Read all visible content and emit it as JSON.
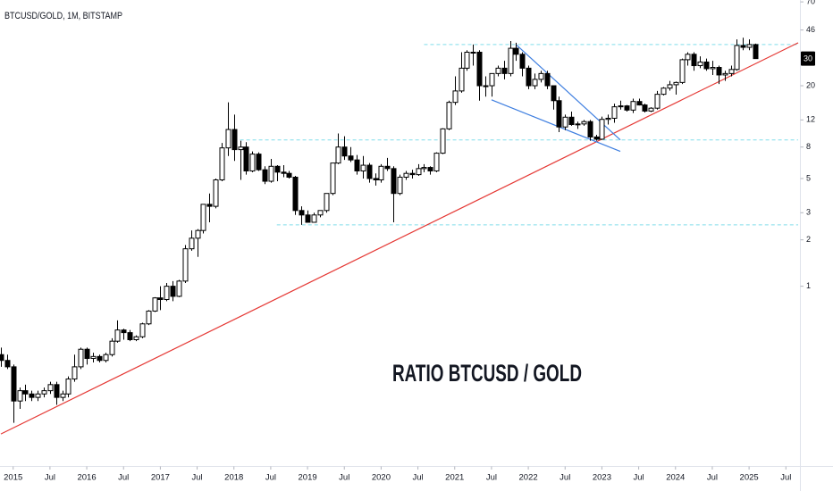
{
  "chart_data": {
    "type": "candlestick",
    "title": "BTCUSD/GOLD, 1M, BITSTAMP",
    "annotation": "RATIO BTCUSD / GOLD",
    "log_scale": true,
    "grid": false,
    "up_color": "#ffffff",
    "down_color": "#000000",
    "wick_color": "#000000",
    "x": [
      "2014-11",
      "2014-12",
      "2015-01",
      "2015-02",
      "2015-03",
      "2015-04",
      "2015-05",
      "2015-06",
      "2015-07",
      "2015-08",
      "2015-09",
      "2015-10",
      "2015-11",
      "2015-12",
      "2016-01",
      "2016-02",
      "2016-03",
      "2016-04",
      "2016-05",
      "2016-06",
      "2016-07",
      "2016-08",
      "2016-09",
      "2016-10",
      "2016-11",
      "2016-12",
      "2017-01",
      "2017-02",
      "2017-03",
      "2017-04",
      "2017-05",
      "2017-06",
      "2017-07",
      "2017-08",
      "2017-09",
      "2017-10",
      "2017-11",
      "2017-12",
      "2018-01",
      "2018-02",
      "2018-03",
      "2018-04",
      "2018-05",
      "2018-06",
      "2018-07",
      "2018-08",
      "2018-09",
      "2018-10",
      "2018-11",
      "2018-12",
      "2019-01",
      "2019-02",
      "2019-03",
      "2019-04",
      "2019-05",
      "2019-06",
      "2019-07",
      "2019-08",
      "2019-09",
      "2019-10",
      "2019-11",
      "2019-12",
      "2020-01",
      "2020-02",
      "2020-03",
      "2020-04",
      "2020-05",
      "2020-06",
      "2020-07",
      "2020-08",
      "2020-09",
      "2020-10",
      "2020-11",
      "2020-12",
      "2021-01",
      "2021-02",
      "2021-03",
      "2021-04",
      "2021-05",
      "2021-06",
      "2021-07",
      "2021-08",
      "2021-09",
      "2021-10",
      "2021-11",
      "2021-12",
      "2022-01",
      "2022-02",
      "2022-03",
      "2022-04",
      "2022-05",
      "2022-06",
      "2022-07",
      "2022-08",
      "2022-09",
      "2022-10",
      "2022-11",
      "2022-12",
      "2023-01",
      "2023-02",
      "2023-03",
      "2023-04",
      "2023-05",
      "2023-06",
      "2023-07",
      "2023-08",
      "2023-09",
      "2023-10",
      "2023-11",
      "2023-12",
      "2024-01",
      "2024-02",
      "2024-03",
      "2024-04",
      "2024-05",
      "2024-06",
      "2024-07",
      "2024-08",
      "2024-09",
      "2024-10",
      "2024-11",
      "2024-12",
      "2025-01",
      "2025-02"
    ],
    "open": [
      0.36,
      0.33,
      0.3,
      0.18,
      0.21,
      0.2,
      0.19,
      0.2,
      0.21,
      0.23,
      0.19,
      0.2,
      0.25,
      0.3,
      0.39,
      0.34,
      0.35,
      0.33,
      0.36,
      0.44,
      0.52,
      0.5,
      0.45,
      0.47,
      0.57,
      0.69,
      0.84,
      0.82,
      1.0,
      0.86,
      1.08,
      1.75,
      2.05,
      2.3,
      3.4,
      3.3,
      4.9,
      7.9,
      10.4,
      7.7,
      8.0,
      5.6,
      7.2,
      5.7,
      4.8,
      6.0,
      5.5,
      5.4,
      5.1,
      3.1,
      2.9,
      2.6,
      2.9,
      3.1,
      4.0,
      6.3,
      8.0,
      7.0,
      6.6,
      5.6,
      6.1,
      5.0,
      4.9,
      6.0,
      5.8,
      4.0,
      5.1,
      5.4,
      5.3,
      5.8,
      5.9,
      5.6,
      7.3,
      10.5,
      15.6,
      18.5,
      26,
      33,
      33,
      20,
      20,
      24,
      26,
      24,
      35,
      32,
      26,
      20,
      22,
      24,
      20,
      16,
      10.8,
      12.5,
      11.2,
      11.3,
      11.7,
      9.3,
      9.0,
      12.1,
      12.3,
      14.6,
      14.8,
      13.9,
      15.8,
      15.0,
      13.7,
      14.3,
      17.6,
      19.3,
      20.3,
      21,
      29.5,
      32,
      27,
      28.5,
      25.8,
      26.3,
      23.5,
      24,
      25.5,
      36.5,
      35.5,
      37
    ],
    "high": [
      0.4,
      0.36,
      0.31,
      0.22,
      0.23,
      0.21,
      0.21,
      0.22,
      0.24,
      0.24,
      0.21,
      0.26,
      0.36,
      0.4,
      0.4,
      0.37,
      0.36,
      0.37,
      0.46,
      0.6,
      0.53,
      0.52,
      0.48,
      0.58,
      0.7,
      0.85,
      1.0,
      1.05,
      1.08,
      1.1,
      1.85,
      2.3,
      2.35,
      3.4,
      4.0,
      5.0,
      8.5,
      15.6,
      13.0,
      8.8,
      8.6,
      7.5,
      7.4,
      6.0,
      6.7,
      6.1,
      6.1,
      5.6,
      5.2,
      3.3,
      3.1,
      3.0,
      3.1,
      4.0,
      6.3,
      9.8,
      9.4,
      8.0,
      7.1,
      7.0,
      6.3,
      5.4,
      6.2,
      6.8,
      6.0,
      5.3,
      5.6,
      5.7,
      6.2,
      6.2,
      6.0,
      7.4,
      10.6,
      16.0,
      23,
      33,
      34,
      37,
      34,
      23,
      24,
      27,
      29,
      39,
      38,
      33,
      27,
      24,
      25,
      25,
      20,
      17,
      13,
      13.6,
      11.7,
      12,
      12,
      9.6,
      12.6,
      13,
      15.3,
      16,
      15,
      16.5,
      16.5,
      15.3,
      14.5,
      18.5,
      19.6,
      21.5,
      21.3,
      30,
      33,
      33,
      31,
      30,
      29,
      27,
      25,
      27,
      40,
      41,
      40,
      37.5
    ],
    "low": [
      0.3,
      0.29,
      0.13,
      0.16,
      0.18,
      0.18,
      0.18,
      0.19,
      0.2,
      0.17,
      0.18,
      0.19,
      0.24,
      0.29,
      0.31,
      0.32,
      0.32,
      0.32,
      0.35,
      0.43,
      0.45,
      0.44,
      0.44,
      0.46,
      0.56,
      0.68,
      0.7,
      0.8,
      0.8,
      0.85,
      1.05,
      1.7,
      1.55,
      2.2,
      2.6,
      3.2,
      4.8,
      7.0,
      6.5,
      4.9,
      5.3,
      5.5,
      5.6,
      4.6,
      4.7,
      4.8,
      5.1,
      5.0,
      2.9,
      2.5,
      2.6,
      2.6,
      2.8,
      3.0,
      3.9,
      6.2,
      6.6,
      6.4,
      5.3,
      5.0,
      4.7,
      4.5,
      4.7,
      5.6,
      2.6,
      3.9,
      4.9,
      5.0,
      5.2,
      5.5,
      5.3,
      5.5,
      7.2,
      10.3,
      15.0,
      18,
      25,
      27,
      16,
      17,
      17,
      23,
      22,
      23,
      29,
      23,
      19,
      19,
      21,
      19,
      14,
      10,
      10.3,
      11,
      10.5,
      11,
      8.8,
      8.8,
      8.9,
      11.2,
      11.5,
      14,
      13.6,
      13.3,
      14.9,
      13.4,
      13.5,
      14,
      17.3,
      18.6,
      17.5,
      20.5,
      27,
      25,
      26,
      25,
      23.5,
      20.5,
      21.5,
      23,
      25,
      34,
      34,
      30
    ],
    "close": [
      0.33,
      0.3,
      0.18,
      0.21,
      0.2,
      0.19,
      0.2,
      0.21,
      0.23,
      0.19,
      0.2,
      0.25,
      0.3,
      0.39,
      0.34,
      0.35,
      0.33,
      0.36,
      0.44,
      0.52,
      0.5,
      0.45,
      0.47,
      0.57,
      0.69,
      0.84,
      0.82,
      1.0,
      0.86,
      1.08,
      1.75,
      2.05,
      2.3,
      3.4,
      3.3,
      4.9,
      7.9,
      10.4,
      7.7,
      8.0,
      5.6,
      7.2,
      5.7,
      4.8,
      6.0,
      5.5,
      5.4,
      5.1,
      3.1,
      2.9,
      2.6,
      2.9,
      3.1,
      4.0,
      6.3,
      8.0,
      7.0,
      6.6,
      5.6,
      6.1,
      5.0,
      4.9,
      6.0,
      5.8,
      4.0,
      5.1,
      5.4,
      5.3,
      5.8,
      5.9,
      5.6,
      7.3,
      10.5,
      15.6,
      18.5,
      26,
      33,
      33,
      20,
      20,
      24,
      26,
      24,
      35,
      32,
      26,
      20,
      22,
      24,
      20,
      16,
      10.8,
      12.5,
      11.2,
      11.3,
      11.7,
      9.3,
      9.0,
      12.1,
      12.3,
      14.6,
      14.8,
      13.9,
      15.8,
      15.0,
      13.7,
      14.3,
      17.6,
      19.3,
      20.3,
      21,
      29.5,
      32,
      27,
      28.5,
      25.8,
      26.3,
      23.5,
      24,
      25.5,
      36.5,
      35.5,
      37,
      30
    ],
    "xlim": [
      "2014-11",
      "2025-09"
    ],
    "ylim": [
      0.07,
      72
    ],
    "yticks": [
      70,
      46,
      20,
      12,
      8,
      5,
      3,
      2,
      1
    ],
    "xticks": [
      {
        "value": "2015-01",
        "label": "2015"
      },
      {
        "value": "2015-07",
        "label": "Jul"
      },
      {
        "value": "2016-01",
        "label": "2016"
      },
      {
        "value": "2016-07",
        "label": "Jul"
      },
      {
        "value": "2017-01",
        "label": "2017"
      },
      {
        "value": "2017-07",
        "label": "Jul"
      },
      {
        "value": "2018-01",
        "label": "2018"
      },
      {
        "value": "2018-07",
        "label": "Jul"
      },
      {
        "value": "2019-01",
        "label": "2019"
      },
      {
        "value": "2019-07",
        "label": "Jul"
      },
      {
        "value": "2020-01",
        "label": "2020"
      },
      {
        "value": "2020-07",
        "label": "Jul"
      },
      {
        "value": "2021-01",
        "label": "2021"
      },
      {
        "value": "2021-07",
        "label": "Jul"
      },
      {
        "value": "2022-01",
        "label": "2022"
      },
      {
        "value": "2022-07",
        "label": "Jul"
      },
      {
        "value": "2023-01",
        "label": "2023"
      },
      {
        "value": "2023-07",
        "label": "Jul"
      },
      {
        "value": "2024-01",
        "label": "2024"
      },
      {
        "value": "2024-07",
        "label": "Jul"
      },
      {
        "value": "2025-01",
        "label": "2025"
      },
      {
        "value": "2025-07",
        "label": "Jul"
      }
    ],
    "hlines": [
      {
        "value": 37,
        "from": "2020-08",
        "color": "#80deea"
      },
      {
        "value": 8.9,
        "from": "2018-02",
        "color": "#80deea"
      },
      {
        "value": 2.5,
        "from": "2018-08",
        "color": "#80deea"
      }
    ],
    "trendlines": [
      {
        "color": "#e53935",
        "points": [
          [
            "2014-11",
            0.11
          ],
          [
            "2025-09",
            38
          ]
        ]
      },
      {
        "color": "#3f7fe0",
        "points": [
          [
            "2021-11",
            37
          ],
          [
            "2023-04",
            8.9
          ]
        ]
      },
      {
        "color": "#3f7fe0",
        "points": [
          [
            "2021-07",
            16.2
          ],
          [
            "2023-04",
            7.5
          ]
        ]
      }
    ]
  }
}
